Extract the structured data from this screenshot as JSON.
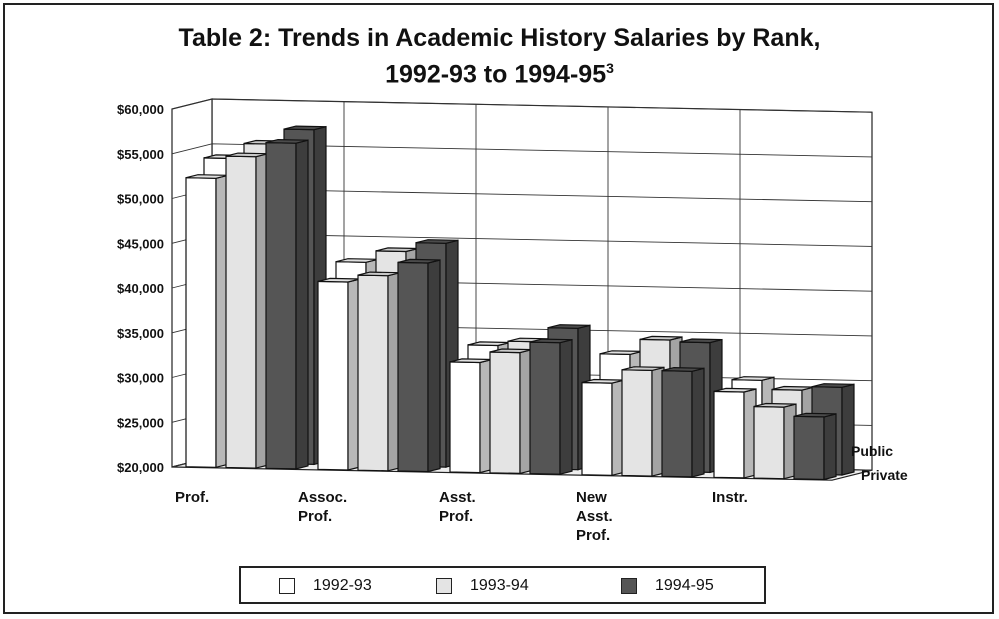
{
  "title_line1": "Table 2: Trends in Academic History Salaries by Rank,",
  "title_line2": "1992-93 to 1994-95",
  "title_sup": "3",
  "chart_data": {
    "type": "bar",
    "categories": [
      "Prof.",
      "Assoc. Prof.",
      "Asst. Prof.",
      "New Asst. Prof.",
      "Instr."
    ],
    "category_lines": [
      [
        "Prof."
      ],
      [
        "Assoc.",
        "Prof."
      ],
      [
        "Asst.",
        "Prof."
      ],
      [
        "New",
        "Asst.",
        "Prof."
      ],
      [
        "Instr."
      ]
    ],
    "depth_rows": [
      "Public",
      "Private"
    ],
    "series": [
      {
        "name": "1992-93",
        "color": "#ffffff",
        "public": [
          52300,
          41000,
          32300,
          30300,
          29600
        ],
        "private": [
          54000,
          42700,
          33700,
          33000,
          30400
        ]
      },
      {
        "name": "1993-94",
        "color": "#e4e4e4",
        "public": [
          54800,
          41800,
          33500,
          31800,
          28000
        ],
        "private": [
          55700,
          44000,
          34200,
          34700,
          29400
        ]
      },
      {
        "name": "1994-95",
        "color": "#555555",
        "public": [
          56400,
          43300,
          34700,
          31800,
          27000
        ],
        "private": [
          57400,
          45000,
          35800,
          34500,
          29800
        ]
      }
    ],
    "ylim": [
      20000,
      60000
    ],
    "yticks": [
      "$20,000",
      "$25,000",
      "$30,000",
      "$35,000",
      "$40,000",
      "$45,000",
      "$50,000",
      "$55,000",
      "$60,000"
    ],
    "ytick_values": [
      20000,
      25000,
      30000,
      35000,
      40000,
      45000,
      50000,
      55000,
      60000
    ],
    "grid": true,
    "legend_position": "bottom"
  }
}
